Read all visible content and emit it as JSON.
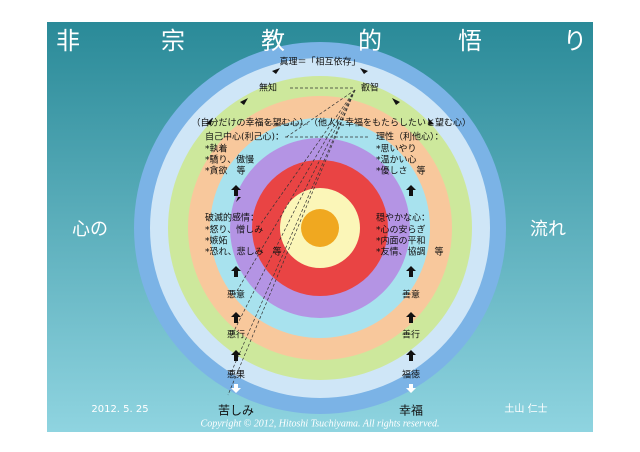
{
  "title": {
    "characters": [
      "非",
      "宗",
      "教",
      "的",
      "悟",
      "り"
    ]
  },
  "side_labels": {
    "left": "心の",
    "right": "流れ"
  },
  "footer": {
    "date": "2012. 5. 25",
    "author": "土山 仁士",
    "copyright": "Copyright © 2012, Hitoshi Tsuchiyama. All rights reserved."
  },
  "diagram": {
    "truth": "真理＝「相互依存」",
    "ignorance": "無知",
    "wisdom": "叡智",
    "selfish_wish": "（自分だけの幸福を望む心）",
    "altruistic_wish": "（他人に幸福をもたらしたいと望む心）",
    "self_centered": {
      "heading": "自己中心(利己心)：",
      "items": [
        "*執着",
        "*驕り、傲慢",
        "*貪欲　等"
      ]
    },
    "reason": {
      "heading": "理性（利他心）：",
      "items": [
        "*思いやり",
        "*温かい心",
        "*優しさ　等"
      ]
    },
    "destructive": {
      "heading": "破滅的感情：",
      "items": [
        "*怒り、憎しみ",
        "*嫉妬",
        "*恐れ、悲しみ　等"
      ]
    },
    "calm": {
      "heading": "穏やかな心：",
      "items": [
        "*心の安らぎ",
        "*内面の平和",
        "*友情、協調　等"
      ]
    },
    "left_chain": [
      "悪意",
      "悪行",
      "悪果",
      "苦しみ"
    ],
    "right_chain": [
      "善意",
      "善行",
      "福徳",
      "幸福"
    ]
  }
}
